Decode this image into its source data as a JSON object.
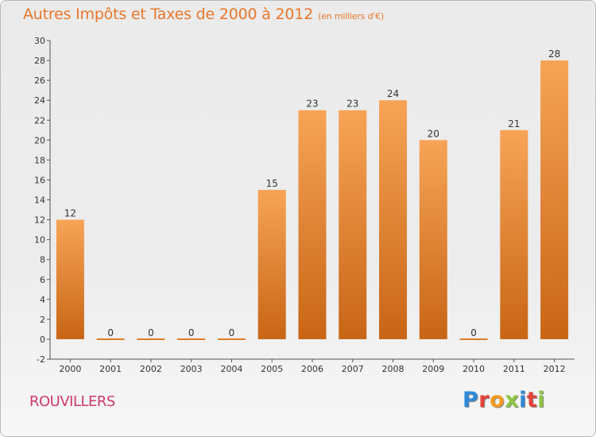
{
  "header": {
    "title": "Autres Impôts et Taxes de 2000 à 2012",
    "subtitle": "(en milliers d'€)"
  },
  "footer": {
    "place": "ROUVILLERS",
    "brand_letters": [
      "P",
      "r",
      "o",
      "x",
      "i",
      "t",
      "i"
    ],
    "brand_colors": [
      "#2e8ad8",
      "#e5433a",
      "#f29a1f",
      "#8cc63f",
      "#2e8ad8",
      "#e5433a",
      "#8cc63f"
    ]
  },
  "chart_data": {
    "type": "bar",
    "title": "Autres Impôts et Taxes de 2000 à 2012",
    "subtitle": "(en milliers d'€)",
    "categories": [
      "2000",
      "2001",
      "2002",
      "2003",
      "2004",
      "2005",
      "2006",
      "2007",
      "2008",
      "2009",
      "2010",
      "2011",
      "2012"
    ],
    "values": [
      12,
      0,
      0,
      0,
      0,
      15,
      23,
      23,
      24,
      20,
      0,
      21,
      28
    ],
    "ylim": [
      -2,
      30
    ],
    "yticks": [
      -2,
      0,
      2,
      4,
      6,
      8,
      10,
      12,
      14,
      16,
      18,
      20,
      22,
      24,
      26,
      28,
      30
    ],
    "grid": false,
    "legend": "none",
    "colors": {
      "bar_light": "#f7a456",
      "bar_dark": "#c86515",
      "zero_bar": "#e07b22",
      "axis": "#555555"
    }
  }
}
